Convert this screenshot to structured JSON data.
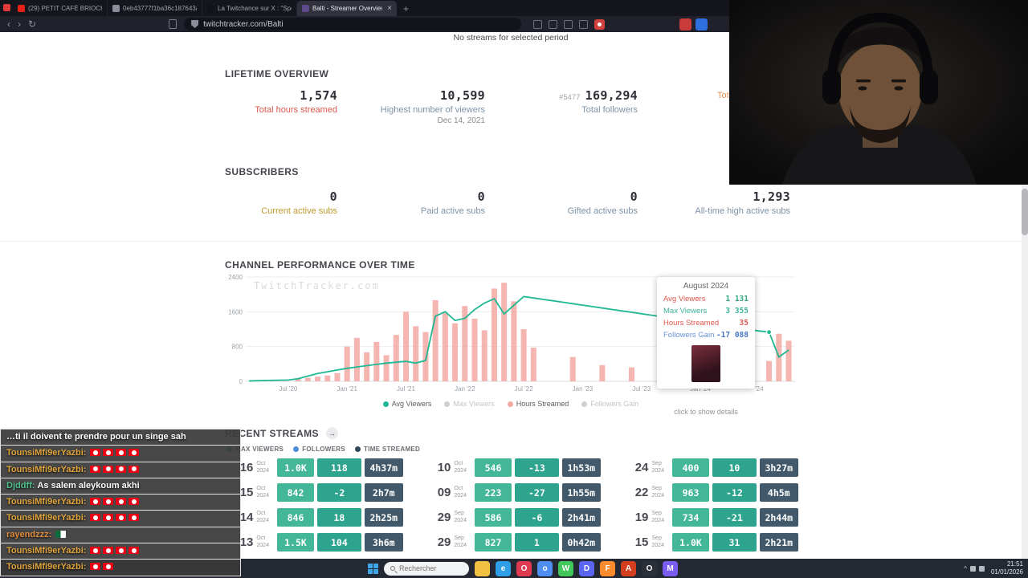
{
  "browser": {
    "tabs": [
      {
        "label": "(29) PETIT CAFÉ BRIOCHE 2 AVEC M...",
        "icon": "youtube",
        "icon_color": "#e62117",
        "active": false
      },
      {
        "label": "0eb43777f1ba36c187643a432b8b0...",
        "icon": "document",
        "icon_color": "#8b8e98",
        "active": false
      },
      {
        "label": "La Twitchance sur X : \"Speed à anno...",
        "icon": "x-twitter",
        "icon_color": "#0f1419",
        "active": false
      },
      {
        "label": "Balti - Streamer Overview & Stat...",
        "icon": "twitchtracker",
        "icon_color": "#5c4a8c",
        "active": true
      }
    ],
    "new_tab_label": "+",
    "close_label": "×",
    "url": "twitchtracker.com/Balti"
  },
  "page": {
    "notice": "No streams for selected period",
    "lifetime": {
      "title": "LIFETIME OVERVIEW",
      "stats": [
        {
          "value": "1,574",
          "label": "Total hours streamed",
          "label_color": "#e2574c"
        },
        {
          "value": "10,599",
          "label": "Highest number of viewers",
          "label_color": "#7d93a8",
          "sub": "Dec 14, 2021"
        },
        {
          "rank": "#5477",
          "value": "169,294",
          "label": "Total followers",
          "label_color": "#7d93a8"
        },
        {
          "value": "",
          "label": "Tota",
          "label_color": "#e2915a",
          "truncated": true
        }
      ]
    },
    "subscribers": {
      "title": "SUBSCRIBERS",
      "stats": [
        {
          "value": "0",
          "label": "Current active subs",
          "label_color": "#c09a2e"
        },
        {
          "value": "0",
          "label": "Paid active subs",
          "label_color": "#7d93a8"
        },
        {
          "value": "0",
          "label": "Gifted active subs",
          "label_color": "#7d93a8"
        },
        {
          "value": "1,293",
          "label": "All-time high active subs",
          "label_color": "#7d93a8"
        }
      ]
    },
    "performance_title": "CHANNEL PERFORMANCE OVER TIME",
    "watermark": "TwitchTracker.com",
    "recent": {
      "title": "RECENT STREAMS",
      "legend": [
        {
          "label": "MAX VIEWERS",
          "color": "#3bb79b"
        },
        {
          "label": "FOLLOWERS",
          "color": "#4a90d9"
        },
        {
          "label": "TIME STREAMED",
          "color": "#2f4858"
        }
      ],
      "columns": [
        [
          {
            "day": "16",
            "month": "Oct",
            "year": "2024",
            "viewers": "1.0K",
            "followers": "118",
            "time": "4h37m"
          },
          {
            "day": "15",
            "month": "Oct",
            "year": "2024",
            "viewers": "842",
            "followers": "-2",
            "time": "2h7m"
          },
          {
            "day": "14",
            "month": "Oct",
            "year": "2024",
            "viewers": "846",
            "followers": "18",
            "time": "2h25m"
          },
          {
            "day": "13",
            "month": "Oct",
            "year": "2024",
            "viewers": "1.5K",
            "followers": "104",
            "time": "3h6m"
          }
        ],
        [
          {
            "day": "10",
            "month": "Oct",
            "year": "2024",
            "viewers": "546",
            "followers": "-13",
            "time": "1h53m"
          },
          {
            "day": "09",
            "month": "Oct",
            "year": "2024",
            "viewers": "223",
            "followers": "-27",
            "time": "1h55m"
          },
          {
            "day": "29",
            "month": "Sep",
            "year": "2024",
            "viewers": "586",
            "followers": "-6",
            "time": "2h41m"
          },
          {
            "day": "29",
            "month": "Sep",
            "year": "2024",
            "viewers": "827",
            "followers": "1",
            "time": "0h42m"
          }
        ],
        [
          {
            "day": "24",
            "month": "Sep",
            "year": "2024",
            "viewers": "400",
            "followers": "10",
            "time": "3h27m"
          },
          {
            "day": "22",
            "month": "Sep",
            "year": "2024",
            "viewers": "963",
            "followers": "-12",
            "time": "4h5m"
          },
          {
            "day": "19",
            "month": "Sep",
            "year": "2024",
            "viewers": "734",
            "followers": "-21",
            "time": "2h44m"
          },
          {
            "day": "15",
            "month": "Sep",
            "year": "2024",
            "viewers": "1.0K",
            "followers": "31",
            "time": "2h21m"
          }
        ]
      ]
    }
  },
  "chart_data": {
    "type": "line+bar",
    "title": "CHANNEL PERFORMANCE OVER TIME",
    "ylim": [
      0,
      2400
    ],
    "y_ticks": [
      0,
      800,
      1600,
      2400
    ],
    "x_start": "2020-03",
    "x_tick_labels": [
      "Jul '20",
      "Jan '21",
      "Jul '21",
      "Jan '22",
      "Jul '22",
      "Jan '23",
      "Jul '23",
      "Jan '24",
      "'24"
    ],
    "x_tick_indices": [
      4,
      10,
      16,
      22,
      28,
      34,
      40,
      46,
      52
    ],
    "series": [
      {
        "name": "Avg Viewers",
        "type": "line",
        "color": "#1fb893",
        "active": true,
        "values": [
          10,
          15,
          20,
          25,
          30,
          60,
          120,
          180,
          220,
          260,
          300,
          330,
          360,
          390,
          420,
          440,
          460,
          420,
          480,
          1500,
          1600,
          1400,
          1450,
          1650,
          1800,
          1900,
          1550,
          1750,
          1950,
          1917,
          1884,
          1851,
          1818,
          1785,
          1752,
          1719,
          1686,
          1653,
          1620,
          1587,
          1554,
          1521,
          1488,
          1455,
          1422,
          1389,
          1356,
          1323,
          1290,
          1257,
          1224,
          1191,
          1158,
          1131,
          560,
          720
        ]
      },
      {
        "name": "Max Viewers",
        "type": "line",
        "color": "#c9c9c9",
        "active": false,
        "values": []
      },
      {
        "name": "Hours Streamed",
        "type": "bar",
        "color": "#f3a8a2",
        "active": true,
        "bar_scale_max": 180,
        "values": [
          0,
          0,
          0,
          0,
          0,
          4,
          6,
          8,
          10,
          14,
          60,
          75,
          50,
          68,
          45,
          80,
          120,
          95,
          85,
          140,
          118,
          100,
          130,
          108,
          88,
          160,
          170,
          138,
          90,
          58,
          0,
          0,
          0,
          42,
          0,
          0,
          28,
          0,
          0,
          24,
          0,
          0,
          0,
          0,
          18,
          0,
          0,
          0,
          0,
          0,
          0,
          0,
          0,
          35,
          82,
          70
        ]
      },
      {
        "name": "Followers Gain",
        "type": "line",
        "color": "#c9c9c9",
        "active": false,
        "values": []
      }
    ],
    "marker_index": 53,
    "tooltip": {
      "title": "August 2024",
      "rows": [
        {
          "label": "Avg Viewers",
          "value": "1 131",
          "label_color": "#e2574c",
          "value_color": "#2fa87c"
        },
        {
          "label": "Max Viewers",
          "value": "3 355",
          "label_color": "#3cb39e",
          "value_color": "#3cb39e"
        },
        {
          "label": "Hours Streamed",
          "value": "35",
          "label_color": "#e2574c",
          "value_color": "#e2574c"
        },
        {
          "label": "Followers Gain",
          "value": "-17 088",
          "label_color": "#6a93d8",
          "value_color": "#4a77c4"
        }
      ],
      "hint": "click to show details"
    }
  },
  "chat": {
    "messages": [
      {
        "user": "",
        "user_color": "",
        "text": "…ti il doivent te prendre pour un singe sah",
        "flags": []
      },
      {
        "user": "TounsiMfi9erYazbi:",
        "user_color": "#e0a43c",
        "text": "",
        "flags": [
          "tn",
          "tn",
          "tn",
          "tn"
        ]
      },
      {
        "user": "TounsiMfi9erYazbi:",
        "user_color": "#e0a43c",
        "text": "",
        "flags": [
          "tn",
          "tn",
          "tn",
          "tn"
        ]
      },
      {
        "user": "Djddff:",
        "user_color": "#4fc08d",
        "text": "As salem aleykoum akhi",
        "flags": []
      },
      {
        "user": "TounsiMfi9erYazbi:",
        "user_color": "#e0a43c",
        "text": "",
        "flags": [
          "tn",
          "tn",
          "tn",
          "tn"
        ]
      },
      {
        "user": "TounsiMfi9erYazbi:",
        "user_color": "#e0a43c",
        "text": "",
        "flags": [
          "tn",
          "tn",
          "tn",
          "tn"
        ]
      },
      {
        "user": "rayendzzz:",
        "user_color": "#e08a3c",
        "text": "",
        "flags": [
          "dz"
        ]
      },
      {
        "user": "TounsiMfi9erYazbi:",
        "user_color": "#e0a43c",
        "text": "",
        "flags": [
          "tn",
          "tn",
          "tn",
          "tn"
        ]
      },
      {
        "user": "TounsiMfi9erYazbi:",
        "user_color": "#e0a43c",
        "text": "",
        "flags": [
          "tn",
          "tn"
        ]
      }
    ]
  },
  "taskbar": {
    "search_placeholder": "Rechercher",
    "time": "21:51",
    "date": "01/01/2026",
    "icons": [
      {
        "name": "file-explorer",
        "color": "#f3c142",
        "glyph": ""
      },
      {
        "name": "edge-browser",
        "color": "#2e9fe6",
        "glyph": "e"
      },
      {
        "name": "opera-gx",
        "color": "#e03a52",
        "glyph": "O"
      },
      {
        "name": "chrome",
        "color": "#4d8ef0",
        "glyph": "o"
      },
      {
        "name": "whatsapp",
        "color": "#41c75a",
        "glyph": "W"
      },
      {
        "name": "discord",
        "color": "#5a66f2",
        "glyph": "D"
      },
      {
        "name": "firefox",
        "color": "#ff8b2e",
        "glyph": "F"
      },
      {
        "name": "office",
        "color": "#d43f1f",
        "glyph": "A"
      },
      {
        "name": "obs-studio",
        "color": "#2b2f38",
        "glyph": "O"
      },
      {
        "name": "messenger",
        "color": "#7a5cf0",
        "glyph": "M"
      }
    ]
  }
}
